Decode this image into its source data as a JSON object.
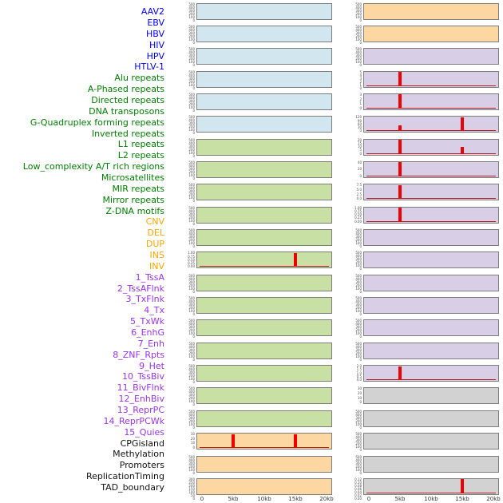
{
  "chart_data": {
    "type": "line",
    "title": "",
    "x_axis": {
      "unit": "kb",
      "range_kb": [
        0,
        20
      ],
      "ticks": [
        {
          "kb": 0,
          "label": "0"
        },
        {
          "kb": 5,
          "label": "5kb"
        },
        {
          "kb": 10,
          "label": "10kb"
        },
        {
          "kb": 15,
          "label": "15kb"
        },
        {
          "kb": 20,
          "label": "20kb"
        }
      ]
    },
    "layout": {
      "columns": 2,
      "tracks_per_column": 22,
      "note_colors": {
        "spike_red": "#ee0000",
        "baseline_red": "#b22222",
        "panel_border": "#7c7c7c"
      }
    },
    "categories": {
      "virus": {
        "label_color": "#0000f0",
        "panel_color": "#d1e6ef"
      },
      "repeat": {
        "label_color": "#007c00",
        "panel_color": "#c9e0a5"
      },
      "sv": {
        "label_color": "#ffa500",
        "panel_color": "#fcd7a2"
      },
      "chromatin": {
        "label_color": "#9933e6",
        "panel_color": "#d8cfe7"
      },
      "other": {
        "label_color": "#111111",
        "panel_color": "#d2d2d2"
      }
    },
    "tracks": [
      {
        "label": "AAV2",
        "category": "virus",
        "yticks": [
          "500",
          "400",
          "300",
          "200",
          "100",
          "0"
        ],
        "baseline": false,
        "spikes": []
      },
      {
        "label": "EBV",
        "category": "virus",
        "yticks": [
          "500",
          "400",
          "300",
          "200",
          "100",
          "0"
        ],
        "baseline": false,
        "spikes": []
      },
      {
        "label": "HBV",
        "category": "virus",
        "yticks": [
          "500",
          "400",
          "300",
          "200",
          "100",
          "0"
        ],
        "baseline": false,
        "spikes": []
      },
      {
        "label": "HIV",
        "category": "virus",
        "yticks": [
          "500",
          "400",
          "300",
          "200",
          "100",
          "0"
        ],
        "baseline": false,
        "spikes": []
      },
      {
        "label": "HPV",
        "category": "virus",
        "yticks": [
          "500",
          "400",
          "300",
          "200",
          "100",
          "0"
        ],
        "baseline": false,
        "spikes": []
      },
      {
        "label": "HTLV-1",
        "category": "virus",
        "yticks": [
          "500",
          "400",
          "300",
          "200",
          "100",
          "0"
        ],
        "baseline": false,
        "spikes": []
      },
      {
        "label": "Alu repeats",
        "category": "repeat",
        "yticks": [
          "500",
          "400",
          "300",
          "200",
          "100",
          "0"
        ],
        "baseline": false,
        "spikes": []
      },
      {
        "label": "A-Phased repeats",
        "category": "repeat",
        "yticks": [
          "500",
          "400",
          "300",
          "200",
          "100",
          "0"
        ],
        "baseline": false,
        "spikes": []
      },
      {
        "label": "Directed repeats",
        "category": "repeat",
        "yticks": [
          "500",
          "400",
          "300",
          "200",
          "100",
          "0"
        ],
        "baseline": false,
        "spikes": []
      },
      {
        "label": "DNA transposons",
        "category": "repeat",
        "yticks": [
          "500",
          "400",
          "300",
          "200",
          "100",
          "0"
        ],
        "baseline": false,
        "spikes": []
      },
      {
        "label": "G-Quadruplex forming repeats",
        "category": "repeat",
        "yticks": [
          "500",
          "400",
          "300",
          "200",
          "100",
          "0"
        ],
        "baseline": false,
        "spikes": []
      },
      {
        "label": "Inverted repeats",
        "category": "repeat",
        "yticks": [
          "1.00",
          "0.75",
          "0.50",
          "0.25",
          "0.00"
        ],
        "baseline": true,
        "spikes": [
          {
            "x_kb": 15,
            "height_frac": 1.0
          }
        ]
      },
      {
        "label": "L1 repeats",
        "category": "repeat",
        "yticks": [
          "500",
          "400",
          "300",
          "200",
          "100",
          "0"
        ],
        "baseline": false,
        "spikes": []
      },
      {
        "label": "L2 repeats",
        "category": "repeat",
        "yticks": [
          "500",
          "400",
          "300",
          "200",
          "100",
          "0"
        ],
        "baseline": false,
        "spikes": []
      },
      {
        "label": "Low_complexity A/T rich regions",
        "category": "repeat",
        "yticks": [
          "500",
          "400",
          "300",
          "200",
          "100",
          "0"
        ],
        "baseline": false,
        "spikes": []
      },
      {
        "label": "Microsatellites",
        "category": "repeat",
        "yticks": [
          "500",
          "400",
          "300",
          "200",
          "100",
          "0"
        ],
        "baseline": false,
        "spikes": []
      },
      {
        "label": "MIR repeats",
        "category": "repeat",
        "yticks": [
          "500",
          "400",
          "300",
          "200",
          "100",
          "0"
        ],
        "baseline": false,
        "spikes": []
      },
      {
        "label": "Mirror repeats",
        "category": "repeat",
        "yticks": [
          "500",
          "400",
          "300",
          "200",
          "100",
          "0"
        ],
        "baseline": false,
        "spikes": []
      },
      {
        "label": "Z-DNA motifs",
        "category": "repeat",
        "yticks": [
          "500",
          "400",
          "300",
          "200",
          "100",
          "0"
        ],
        "baseline": false,
        "spikes": []
      },
      {
        "label": "CNV",
        "category": "sv",
        "yticks": [
          "30",
          "20",
          "10",
          "0"
        ],
        "baseline": true,
        "spikes": [
          {
            "x_kb": 5,
            "height_frac": 1.0
          },
          {
            "x_kb": 15,
            "height_frac": 1.0
          }
        ]
      },
      {
        "label": "DEL",
        "category": "sv",
        "yticks": [
          "500",
          "400",
          "300",
          "200",
          "100",
          "0"
        ],
        "baseline": false,
        "spikes": []
      },
      {
        "label": "DUP",
        "category": "sv",
        "yticks": [
          "300",
          "250",
          "200",
          "150",
          "100",
          "50",
          "0"
        ],
        "baseline": false,
        "spikes": []
      },
      {
        "label": "INS",
        "category": "sv",
        "yticks": [
          "500",
          "400",
          "300",
          "200",
          "100",
          "0"
        ],
        "baseline": false,
        "spikes": []
      },
      {
        "label": "INV",
        "category": "sv",
        "yticks": [
          "500",
          "400",
          "300",
          "200",
          "100",
          "0"
        ],
        "baseline": false,
        "spikes": []
      },
      {
        "label": "1_TssA",
        "category": "chromatin",
        "yticks": [
          "500",
          "400",
          "300",
          "200",
          "100",
          "0"
        ],
        "baseline": false,
        "spikes": []
      },
      {
        "label": "2_TssAFlnk",
        "category": "chromatin",
        "yticks": [
          "5",
          "4",
          "3",
          "2",
          "1",
          "0"
        ],
        "baseline": true,
        "spikes": [
          {
            "x_kb": 5,
            "height_frac": 1.0
          }
        ]
      },
      {
        "label": "3_TxFlnk",
        "category": "chromatin",
        "yticks": [
          "3",
          "2",
          "1",
          "0"
        ],
        "baseline": true,
        "spikes": [
          {
            "x_kb": 5,
            "height_frac": 1.0
          }
        ]
      },
      {
        "label": "4_Tx",
        "category": "chromatin",
        "yticks": [
          "120",
          "90",
          "60",
          "30",
          "0"
        ],
        "baseline": true,
        "spikes": [
          {
            "x_kb": 5,
            "height_frac": 0.4
          },
          {
            "x_kb": 15,
            "height_frac": 1.0
          }
        ]
      },
      {
        "label": "5_TxWk",
        "category": "chromatin",
        "yticks": [
          "20",
          "15",
          "10",
          "5",
          "0"
        ],
        "baseline": true,
        "spikes": [
          {
            "x_kb": 5,
            "height_frac": 1.0
          },
          {
            "x_kb": 15,
            "height_frac": 0.5
          }
        ]
      },
      {
        "label": "6_EnhG",
        "category": "chromatin",
        "yticks": [
          "40",
          "20",
          "0"
        ],
        "baseline": true,
        "spikes": [
          {
            "x_kb": 5,
            "height_frac": 1.0
          }
        ]
      },
      {
        "label": "7_Enh",
        "category": "chromatin",
        "yticks": [
          "7.5",
          "5.0",
          "2.5",
          "0.0"
        ],
        "baseline": true,
        "spikes": [
          {
            "x_kb": 5,
            "height_frac": 1.0
          }
        ]
      },
      {
        "label": "8_ZNF_Rpts",
        "category": "chromatin",
        "yticks": [
          "1.00",
          "0.75",
          "0.50",
          "0.25",
          "0.00"
        ],
        "baseline": true,
        "spikes": [
          {
            "x_kb": 5,
            "height_frac": 1.0
          }
        ]
      },
      {
        "label": "9_Het",
        "category": "chromatin",
        "yticks": [
          "500",
          "400",
          "300",
          "200",
          "100",
          "0"
        ],
        "baseline": false,
        "spikes": []
      },
      {
        "label": "10_TssBiv",
        "category": "chromatin",
        "yticks": [
          "500",
          "400",
          "300",
          "200",
          "100",
          "0"
        ],
        "baseline": false,
        "spikes": []
      },
      {
        "label": "11_BivFlnk",
        "category": "chromatin",
        "yticks": [
          "500",
          "400",
          "300",
          "200",
          "100",
          "0"
        ],
        "baseline": false,
        "spikes": []
      },
      {
        "label": "12_EnhBiv",
        "category": "chromatin",
        "yticks": [
          "500",
          "400",
          "300",
          "200",
          "100",
          "0"
        ],
        "baseline": false,
        "spikes": []
      },
      {
        "label": "13_ReprPC",
        "category": "chromatin",
        "yticks": [
          "500",
          "400",
          "300",
          "200",
          "100",
          "0"
        ],
        "baseline": false,
        "spikes": []
      },
      {
        "label": "14_ReprPCWk",
        "category": "chromatin",
        "yticks": [
          "500",
          "400",
          "300",
          "200",
          "100",
          "0"
        ],
        "baseline": false,
        "spikes": []
      },
      {
        "label": "15_Quies",
        "category": "chromatin",
        "yticks": [
          "2.0",
          "1.5",
          "1.0",
          "0.5",
          "0.0"
        ],
        "baseline": true,
        "spikes": [
          {
            "x_kb": 5,
            "height_frac": 1.0
          }
        ]
      },
      {
        "label": "CPGisland",
        "category": "other",
        "yticks": [
          "30",
          "20",
          "10",
          "0"
        ],
        "baseline": false,
        "spikes": []
      },
      {
        "label": "Methylation",
        "category": "other",
        "yticks": [
          "500",
          "400",
          "300",
          "200",
          "100",
          "0"
        ],
        "baseline": false,
        "spikes": []
      },
      {
        "label": "Promoters",
        "category": "other",
        "yticks": [
          "500",
          "400",
          "300",
          "200",
          "100",
          "0"
        ],
        "baseline": false,
        "spikes": []
      },
      {
        "label": "ReplicationTiming",
        "category": "other",
        "yticks": [
          "500",
          "400",
          "300",
          "200",
          "100",
          "0"
        ],
        "baseline": false,
        "spikes": []
      },
      {
        "label": "TAD_boundary",
        "category": "other",
        "yticks": [
          "0.12",
          "0.10",
          "0.08",
          "0.06",
          "0.04",
          "0.02",
          "0.00"
        ],
        "baseline": true,
        "spikes": [
          {
            "x_kb": 15,
            "height_frac": 1.0
          }
        ]
      }
    ]
  }
}
